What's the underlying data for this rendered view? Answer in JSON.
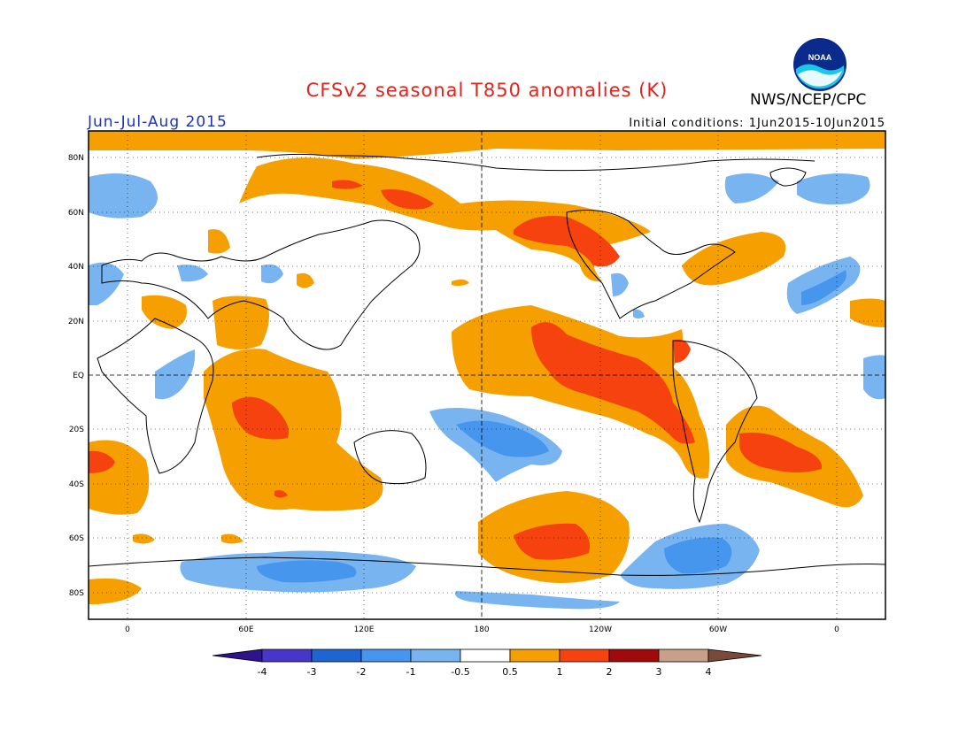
{
  "title": "CFSv2 seasonal T850 anomalies (K)",
  "period": "Jun-Jul-Aug 2015",
  "initial_conditions": "Initial conditions: 1Jun2015-10Jun2015",
  "agency": "NWS/NCEP/CPC",
  "logo_text": "NOAA",
  "colors": {
    "title": "#e8201a",
    "period": "#1a32c8",
    "pos_0_5_1": "#f5a000",
    "pos_1_2": "#f5420f",
    "pos_2_3": "#a00a0a",
    "pos_3_4": "#c8a08a",
    "pos_gt4": "#7a4a38",
    "neg_0_5_1": "#78b4f0",
    "neg_1_2": "#4696ee",
    "neg_2_3": "#1e64d2",
    "neg_3_4": "#4637c8",
    "neg_lt4": "#2d148c"
  },
  "map": {
    "lat_labels": [
      "80N",
      "60N",
      "40N",
      "20N",
      "EQ",
      "20S",
      "40S",
      "60S",
      "80S"
    ],
    "lon_labels": [
      "0",
      "60E",
      "120E",
      "180",
      "120W",
      "60W",
      "0"
    ]
  },
  "colorbar": {
    "labels": [
      "-4",
      "-3",
      "-2",
      "-1",
      "-0.5",
      "0.5",
      "1",
      "2",
      "3",
      "4"
    ]
  }
}
